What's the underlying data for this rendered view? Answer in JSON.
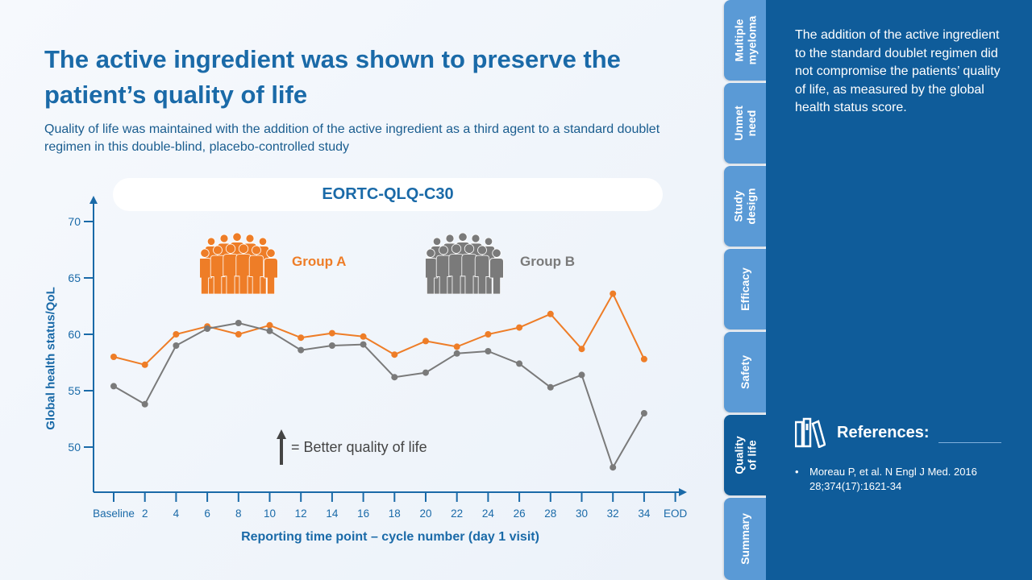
{
  "title": "The active ingredient was shown to preserve the patient’s quality of life",
  "subtitle": "Quality of life was maintained with the addition of the active ingredient as a third agent to a standard doublet regimen in this double-blind, placebo-controlled study",
  "annotation": "= Better quality of life",
  "colors": {
    "group_a": "#ee7d27",
    "group_b": "#7a7a7a",
    "accent": "#1a6aa8",
    "panel": "#0f5c9a",
    "tab": "#5a9ad6"
  },
  "chart_data": {
    "type": "line",
    "title": "EORTC-QLQ-C30",
    "xlabel": "Reporting time point – cycle number (day 1 visit)",
    "ylabel": "Global health status/QoL",
    "categories": [
      "Baseline",
      "2",
      "4",
      "6",
      "8",
      "10",
      "12",
      "14",
      "16",
      "18",
      "20",
      "22",
      "24",
      "26",
      "28",
      "30",
      "32",
      "34",
      "EOD"
    ],
    "yticks": [
      50,
      55,
      60,
      65,
      70
    ],
    "ylim": [
      46.5,
      71.5
    ],
    "series": [
      {
        "name": "Group A",
        "color": "#ee7d27",
        "values": [
          58.0,
          57.3,
          60.0,
          60.7,
          60.0,
          60.8,
          59.7,
          60.1,
          59.8,
          58.2,
          59.4,
          58.9,
          60.0,
          60.6,
          61.8,
          58.7,
          63.6,
          57.8,
          null
        ]
      },
      {
        "name": "Group B",
        "color": "#7a7a7a",
        "values": [
          55.4,
          53.8,
          59.0,
          60.5,
          61.0,
          60.3,
          58.6,
          59.0,
          59.1,
          56.2,
          56.6,
          58.3,
          58.5,
          57.4,
          55.3,
          56.4,
          48.2,
          53.0,
          null
        ]
      }
    ],
    "grid": false,
    "legend": "top"
  },
  "tabs": [
    {
      "label": "Multiple\nmyeloma"
    },
    {
      "label": "Unmet\nneed"
    },
    {
      "label": "Study\ndesign"
    },
    {
      "label": "Efficacy"
    },
    {
      "label": "Safety"
    },
    {
      "label": "Quality\nof life"
    },
    {
      "label": "Summary"
    }
  ],
  "side": {
    "text": "The addition of the active ingredient to the standard doublet regimen did not compromise the patients’ quality of life, as measured by the global health status score.",
    "references_title": "References:",
    "references": [
      "Moreau P, et al. N Engl J Med. 2016 28;374(17):1621-34"
    ]
  }
}
